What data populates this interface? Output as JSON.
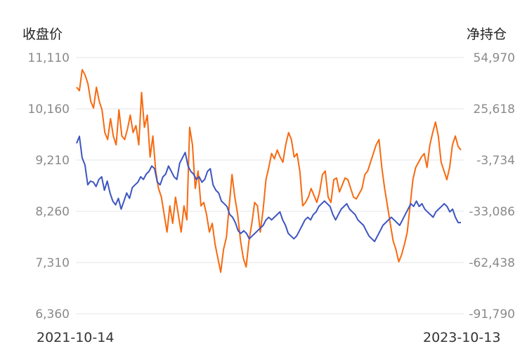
{
  "chart_data": {
    "type": "line",
    "y_left_title": "收盘价",
    "y_right_title": "净持仓",
    "y_left_ticks": [
      "11,110",
      "10,160",
      "9,210",
      "8,260",
      "7,310",
      "6,360"
    ],
    "y_right_ticks": [
      "54,970",
      "25,618",
      "-3,734",
      "-33,086",
      "-62,438",
      "-91,790"
    ],
    "y_left_range": [
      6360,
      11110
    ],
    "y_right_range": [
      -91790,
      54970
    ],
    "x_labels": [
      "2021-10-14",
      "2023-10-13"
    ],
    "grid": true,
    "series": [
      {
        "axis": "left",
        "color": "#3d55c1",
        "values": [
          9520,
          9650,
          9250,
          9120,
          8750,
          8820,
          8800,
          8720,
          8850,
          8900,
          8650,
          8820,
          8600,
          8450,
          8380,
          8500,
          8300,
          8450,
          8600,
          8500,
          8700,
          8750,
          8800,
          8900,
          8850,
          8950,
          9000,
          9100,
          9050,
          8800,
          8750,
          8900,
          8950,
          9100,
          9000,
          8900,
          8850,
          9150,
          9250,
          9350,
          9100,
          9000,
          8950,
          8850,
          8900,
          8800,
          8850,
          9000,
          9050,
          8750,
          8650,
          8600,
          8450,
          8400,
          8350,
          8200,
          8150,
          8050,
          7900,
          7850,
          7900,
          7850,
          7750,
          7800,
          7850,
          7900,
          7950,
          8000,
          8100,
          8150,
          8100,
          8150,
          8200,
          8250,
          8100,
          8000,
          7850,
          7800,
          7750,
          7800,
          7900,
          8000,
          8100,
          8150,
          8100,
          8200,
          8250,
          8350,
          8400,
          8450,
          8400,
          8350,
          8200,
          8100,
          8200,
          8300,
          8350,
          8400,
          8300,
          8250,
          8200,
          8100,
          8050,
          8000,
          7900,
          7800,
          7750,
          7700,
          7800,
          7900,
          8000,
          8050,
          8100,
          8150,
          8100,
          8050,
          8000,
          8100,
          8200,
          8300,
          8400,
          8350,
          8450,
          8350,
          8400,
          8300,
          8250,
          8200,
          8150,
          8250,
          8300,
          8350,
          8400,
          8350,
          8250,
          8300,
          8150,
          8050,
          8050
        ]
      },
      {
        "axis": "right",
        "color": "#f76a10",
        "values": [
          38000,
          36000,
          48000,
          45000,
          40000,
          30000,
          26000,
          38000,
          30000,
          25000,
          12000,
          8000,
          20000,
          10000,
          5000,
          25000,
          10000,
          8000,
          14000,
          22000,
          12000,
          16000,
          5000,
          35000,
          15000,
          22000,
          -2000,
          10000,
          -10000,
          -20000,
          -25000,
          -35000,
          -45000,
          -30000,
          -40000,
          -25000,
          -35000,
          -45000,
          -30000,
          -38000,
          15000,
          5000,
          -20000,
          -10000,
          -30000,
          -28000,
          -35000,
          -45000,
          -40000,
          -52000,
          -60000,
          -68000,
          -55000,
          -48000,
          -30000,
          -12000,
          -25000,
          -35000,
          -50000,
          -60000,
          -65000,
          -50000,
          -40000,
          -28000,
          -30000,
          -45000,
          -32000,
          -15000,
          -8000,
          0,
          -3000,
          2000,
          -2000,
          -5000,
          5000,
          12000,
          8000,
          -2000,
          0,
          -10000,
          -30000,
          -28000,
          -25000,
          -20000,
          -24000,
          -28000,
          -22000,
          -12000,
          -10000,
          -25000,
          -28000,
          -15000,
          -14000,
          -22000,
          -18000,
          -14000,
          -15000,
          -20000,
          -25000,
          -26000,
          -23000,
          -20000,
          -12000,
          -10000,
          -5000,
          0,
          5000,
          8000,
          -8000,
          -20000,
          -30000,
          -40000,
          -50000,
          -55000,
          -62000,
          -58000,
          -52000,
          -45000,
          -30000,
          -15000,
          -8000,
          -5000,
          -2000,
          0,
          -8000,
          5000,
          12000,
          18000,
          10000,
          -5000,
          -10000,
          -15000,
          -8000,
          5000,
          10000,
          4000,
          2000
        ]
      }
    ]
  }
}
